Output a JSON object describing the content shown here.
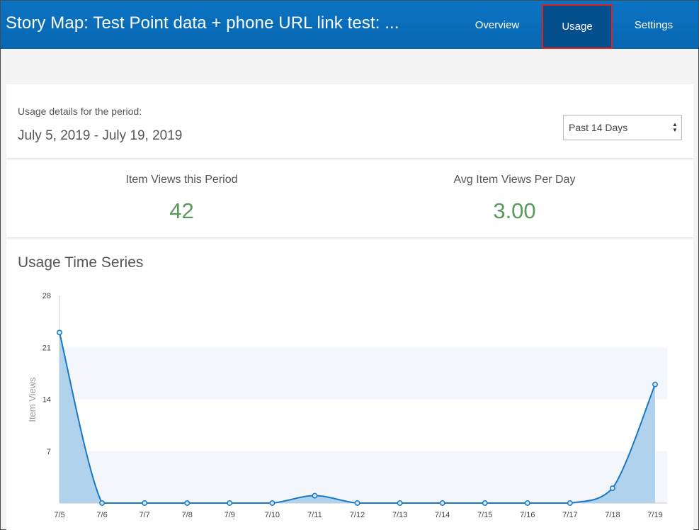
{
  "header": {
    "title": "Story Map: Test Point data + phone URL link test: ...",
    "tabs": {
      "overview": "Overview",
      "usage": "Usage",
      "settings": "Settings"
    }
  },
  "period": {
    "label": "Usage details for the period:",
    "range": "July 5, 2019 - July 19, 2019",
    "select_value": "Past 14 Days"
  },
  "stats": {
    "views_label": "Item Views this Period",
    "views_value": "42",
    "avg_label": "Avg Item Views Per Day",
    "avg_value": "3.00"
  },
  "chart": {
    "title": "Usage Time Series"
  },
  "chart_data": {
    "type": "area",
    "title": "Usage Time Series",
    "xlabel": "",
    "ylabel": "Item Views",
    "x": [
      "7/5",
      "7/6",
      "7/7",
      "7/8",
      "7/9",
      "7/10",
      "7/11",
      "7/12",
      "7/13",
      "7/14",
      "7/15",
      "7/16",
      "7/17",
      "7/18",
      "7/19"
    ],
    "values": [
      23,
      0,
      0,
      0,
      0,
      0,
      1,
      0,
      0,
      0,
      0,
      0,
      0,
      2,
      16
    ],
    "ylim": [
      0,
      28
    ],
    "yticks": [
      7,
      14,
      21,
      28
    ],
    "colors": {
      "line": "#1a78c2",
      "fill": "#a8cdea",
      "band": "#f3f7fb"
    }
  }
}
